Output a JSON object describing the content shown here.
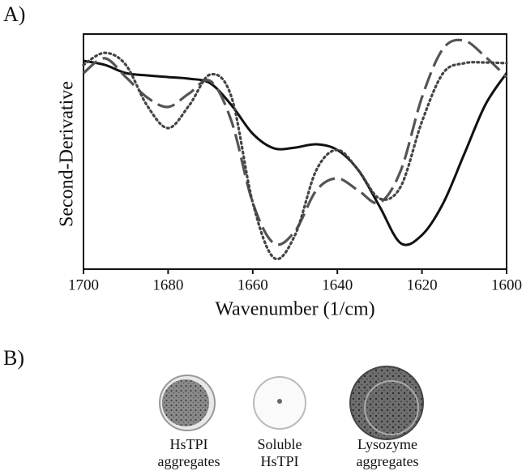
{
  "panel_a_label": "A)",
  "chart_data": {
    "type": "line",
    "xlabel": "Wavenumber (1/cm)",
    "ylabel": "Second-Derivative",
    "x": [
      1700,
      1695,
      1690,
      1685,
      1680,
      1675,
      1670,
      1665,
      1660,
      1655,
      1650,
      1645,
      1640,
      1635,
      1630,
      1625,
      1620,
      1615,
      1610,
      1605,
      1600
    ],
    "xlim": [
      1700,
      1600
    ],
    "xticks": [
      1700,
      1680,
      1660,
      1640,
      1620,
      1600
    ],
    "ylim": [
      0,
      100
    ],
    "series": [
      {
        "color": "#111111",
        "style": "solid",
        "values": [
          88.6,
          86.9,
          83.4,
          82.4,
          81.7,
          81,
          79,
          69.7,
          57.6,
          51.4,
          51.7,
          53.1,
          50.7,
          42,
          26.6,
          11,
          14.5,
          28,
          49,
          70,
          83.4
        ]
      },
      {
        "color": "#555555",
        "style": "dashed",
        "values": [
          83.4,
          89.7,
          81.7,
          73.1,
          69,
          74.8,
          80,
          62.8,
          28.3,
          11,
          16.2,
          33.4,
          38.6,
          33.4,
          28.3,
          42,
          73.1,
          93.8,
          97.2,
          90.3,
          81.7
        ]
      },
      {
        "color": "#444444",
        "style": "dotted",
        "values": [
          86.9,
          92,
          86.9,
          69.7,
          60,
          69.7,
          82.8,
          73.1,
          28.3,
          4.8,
          14.5,
          42,
          50.7,
          42,
          30,
          35.2,
          62.8,
          83.4,
          87.6,
          87.9,
          87.6
        ]
      }
    ]
  },
  "panel_b": {
    "label": "B)",
    "items": [
      {
        "lines": [
          "HsTPI",
          "aggregates"
        ]
      },
      {
        "lines": [
          "Soluble",
          "HsTPI"
        ]
      },
      {
        "lines": [
          "Lysozyme",
          "aggregates"
        ]
      }
    ]
  }
}
